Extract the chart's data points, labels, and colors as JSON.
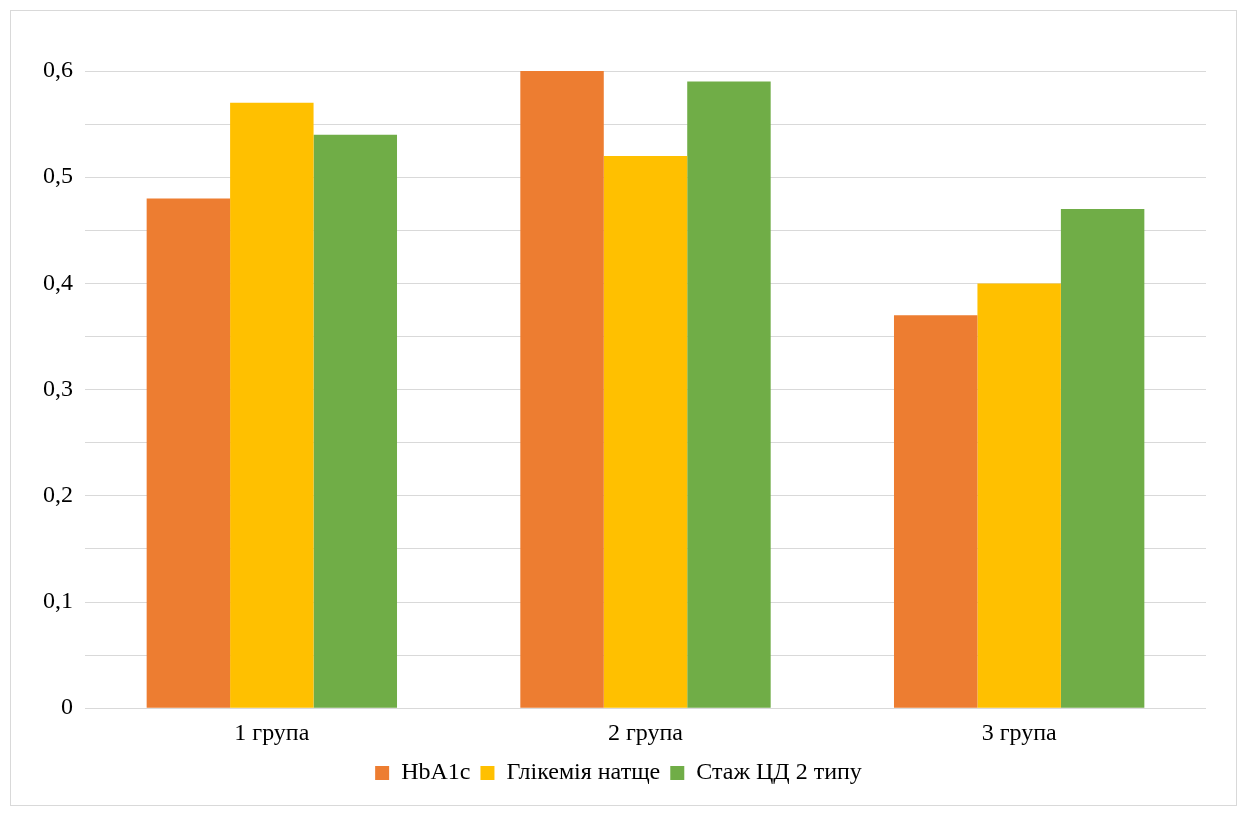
{
  "chart_data": {
    "type": "bar",
    "categories": [
      "1 група",
      "2 група",
      "3 група"
    ],
    "series": [
      {
        "name": "HbA1c",
        "color": "#ed7d31",
        "values": [
          0.48,
          0.6,
          0.37
        ]
      },
      {
        "name": "Глікемія натще",
        "color": "#ffc000",
        "values": [
          0.57,
          0.52,
          0.4
        ]
      },
      {
        "name": "Стаж ЦД 2 типу",
        "color": "#70ad47",
        "values": [
          0.54,
          0.59,
          0.47
        ]
      }
    ],
    "ylim": [
      0,
      0.6
    ],
    "yticks": [
      {
        "value": 0,
        "label": "0"
      },
      {
        "value": 0.05,
        "label": null
      },
      {
        "value": 0.1,
        "label": "0,1"
      },
      {
        "value": 0.15,
        "label": null
      },
      {
        "value": 0.2,
        "label": "0,2"
      },
      {
        "value": 0.25,
        "label": null
      },
      {
        "value": 0.3,
        "label": "0,3"
      },
      {
        "value": 0.35,
        "label": null
      },
      {
        "value": 0.4,
        "label": "0,4"
      },
      {
        "value": 0.45,
        "label": null
      },
      {
        "value": 0.5,
        "label": "0,5"
      },
      {
        "value": 0.55,
        "label": null
      },
      {
        "value": 0.6,
        "label": "0,6"
      }
    ],
    "grid": "y",
    "legend": "bottom"
  }
}
